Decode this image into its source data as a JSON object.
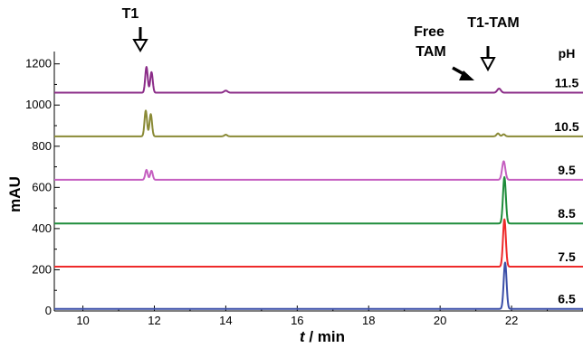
{
  "chart_data": {
    "type": "line",
    "xlabel_italic": "t",
    "xlabel_rest": " / min",
    "ylabel": "mAU",
    "xlim": [
      9.2,
      24.0
    ],
    "ylim": [
      0,
      1260
    ],
    "x_ticks": [
      10,
      12,
      14,
      16,
      18,
      20,
      22
    ],
    "y_ticks": [
      0,
      200,
      400,
      600,
      800,
      1000,
      1200
    ],
    "legend_title": "pH",
    "annotations": {
      "t1": "T1",
      "free_line1": "Free",
      "free_line2": "TAM",
      "t1tam": "T1-TAM"
    },
    "series": [
      {
        "name": "6.5",
        "color": "#3b4fa8",
        "baseline": 10,
        "peaks": [
          {
            "x": 21.82,
            "height": 225,
            "width": 0.04
          }
        ]
      },
      {
        "name": "7.5",
        "color": "#ee2a2a",
        "baseline": 215,
        "peaks": [
          {
            "x": 21.8,
            "height": 230,
            "width": 0.04
          }
        ]
      },
      {
        "name": "8.5",
        "color": "#1e8c3a",
        "baseline": 425,
        "peaks": [
          {
            "x": 21.8,
            "height": 225,
            "width": 0.04
          }
        ]
      },
      {
        "name": "9.5",
        "color": "#c55fc0",
        "baseline": 637,
        "peaks": [
          {
            "x": 11.78,
            "height": 48,
            "width": 0.035
          },
          {
            "x": 11.92,
            "height": 44,
            "width": 0.035
          },
          {
            "x": 21.78,
            "height": 90,
            "width": 0.045
          }
        ]
      },
      {
        "name": "10.5",
        "color": "#8a8a36",
        "baseline": 848,
        "peaks": [
          {
            "x": 11.76,
            "height": 125,
            "width": 0.035
          },
          {
            "x": 11.9,
            "height": 108,
            "width": 0.035
          },
          {
            "x": 14.0,
            "height": 8,
            "width": 0.04
          },
          {
            "x": 21.62,
            "height": 14,
            "width": 0.04
          },
          {
            "x": 21.78,
            "height": 10,
            "width": 0.04
          }
        ]
      },
      {
        "name": "11.5",
        "color": "#8b2c88",
        "baseline": 1060,
        "peaks": [
          {
            "x": 11.78,
            "height": 125,
            "width": 0.035
          },
          {
            "x": 11.92,
            "height": 100,
            "width": 0.035
          },
          {
            "x": 14.0,
            "height": 10,
            "width": 0.05
          },
          {
            "x": 21.65,
            "height": 20,
            "width": 0.05
          }
        ]
      }
    ]
  }
}
